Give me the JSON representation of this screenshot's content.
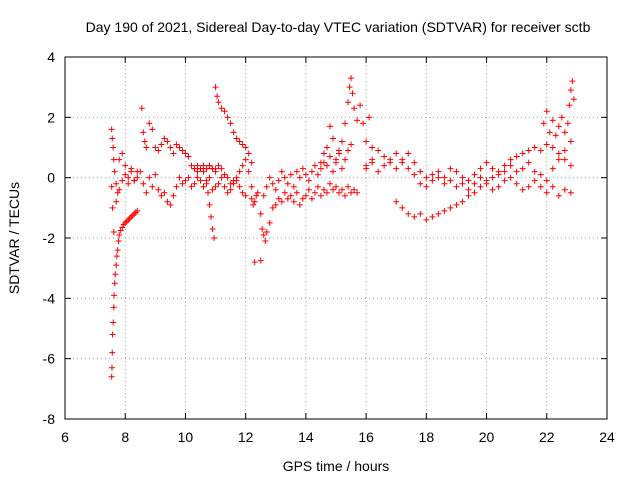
{
  "chart_data": {
    "type": "scatter",
    "title": "Day 190 of 2021, Sidereal Day-to-day VTEC variation (SDTVAR) for receiver sctb",
    "xlabel": "GPS time / hours",
    "ylabel": "SDTVAR / TECUs",
    "xlim": [
      6,
      24
    ],
    "ylim": [
      -8,
      4
    ],
    "xticks": [
      6,
      8,
      10,
      12,
      14,
      16,
      18,
      20,
      22,
      24
    ],
    "yticks": [
      -8,
      -6,
      -4,
      -2,
      0,
      2,
      4
    ],
    "grid": true,
    "marker": "+",
    "color": "#ff0000",
    "series": [
      {
        "name": "SDTVAR",
        "x": [
          7.55,
          7.56,
          7.57,
          7.58,
          7.6,
          7.62,
          7.63,
          7.65,
          7.67,
          7.7,
          7.72,
          7.75,
          7.78,
          7.8,
          7.85,
          7.9,
          7.95,
          8.0,
          8.05,
          8.1,
          8.15,
          8.2,
          8.25,
          8.3,
          8.35,
          8.4,
          7.55,
          7.57,
          7.6,
          7.62,
          7.65,
          7.7,
          7.75,
          7.8,
          7.9,
          8.0,
          8.1,
          8.2,
          8.3,
          8.4,
          7.55,
          7.58,
          7.62,
          7.7,
          7.8,
          7.9,
          8.0,
          8.1,
          8.2,
          8.3,
          8.4,
          8.55,
          8.6,
          8.65,
          8.7,
          8.8,
          8.9,
          9.0,
          9.1,
          9.2,
          9.3,
          9.4,
          9.5,
          9.6,
          9.7,
          9.8,
          9.9,
          10.0,
          10.1,
          10.2,
          10.3,
          10.4,
          10.5,
          10.6,
          10.7,
          10.8,
          10.9,
          11.0,
          8.5,
          8.6,
          8.7,
          8.8,
          8.9,
          9.0,
          9.1,
          9.2,
          9.3,
          9.4,
          9.5,
          9.6,
          9.7,
          9.8,
          9.9,
          10.0,
          10.1,
          10.2,
          10.3,
          10.4,
          10.5,
          10.6,
          10.7,
          10.8,
          10.9,
          11.0,
          11.1,
          11.2,
          11.3,
          11.4,
          11.5,
          11.6,
          11.7,
          11.8,
          11.9,
          12.0,
          10.3,
          10.4,
          10.5,
          10.6,
          10.7,
          10.8,
          10.9,
          11.0,
          11.1,
          11.2,
          11.3,
          11.4,
          11.5,
          11.6,
          11.7,
          11.8,
          11.9,
          12.0,
          12.1,
          12.2,
          10.7,
          10.75,
          10.8,
          10.85,
          10.9,
          10.95,
          11.0,
          11.05,
          11.1,
          11.2,
          11.3,
          11.4,
          11.5,
          11.6,
          11.7,
          11.8,
          11.9,
          12.0,
          12.1,
          12.2,
          12.2,
          12.25,
          12.3,
          12.35,
          12.4,
          12.5,
          12.55,
          12.6,
          12.65,
          12.7,
          12.8,
          12.9,
          13.0,
          13.1,
          13.2,
          13.3,
          13.4,
          13.5,
          13.6,
          13.7,
          13.8,
          13.9,
          14.0,
          14.1,
          14.2,
          14.3,
          14.4,
          14.5,
          14.6,
          14.7,
          14.8,
          14.9,
          15.0,
          15.1,
          15.2,
          15.3,
          15.4,
          15.5,
          15.6,
          15.7,
          12.6,
          12.7,
          12.8,
          12.9,
          13.0,
          13.1,
          13.2,
          13.3,
          13.4,
          13.5,
          13.6,
          13.7,
          13.8,
          13.9,
          14.0,
          14.1,
          14.2,
          14.3,
          14.4,
          14.5,
          12.3,
          12.5,
          14.6,
          14.7,
          14.8,
          14.9,
          15.0,
          15.1,
          15.2,
          15.3,
          15.4,
          15.45,
          15.5,
          15.55,
          15.6,
          15.7,
          15.8,
          15.9,
          16.0,
          16.1,
          16.2,
          14.5,
          14.6,
          14.7,
          14.8,
          14.9,
          15.0,
          15.1,
          15.2,
          15.3,
          15.4,
          15.5,
          16.0,
          16.2,
          16.4,
          16.6,
          16.8,
          17.0,
          17.2,
          17.4,
          17.6,
          17.8,
          18.0,
          18.2,
          18.4,
          18.6,
          18.8,
          19.0,
          19.2,
          19.4,
          19.6,
          19.8,
          20.0,
          20.2,
          20.4,
          20.6,
          20.8,
          21.0,
          21.2,
          21.4,
          21.6,
          21.8,
          22.0,
          22.2,
          22.4,
          22.6,
          22.8,
          16.0,
          16.2,
          16.4,
          16.6,
          16.8,
          17.0,
          17.2,
          17.4,
          17.6,
          17.8,
          18.0,
          18.2,
          18.4,
          18.6,
          18.8,
          19.0,
          19.2,
          19.4,
          19.6,
          19.8,
          20.0,
          20.2,
          20.4,
          20.6,
          20.8,
          21.0,
          21.2,
          21.4,
          21.6,
          21.8,
          22.0,
          22.2,
          22.4,
          22.6,
          22.8,
          17.0,
          17.2,
          17.4,
          17.6,
          17.8,
          18.0,
          18.2,
          18.4,
          18.6,
          18.8,
          19.0,
          19.2,
          19.4,
          19.6,
          19.8,
          20.0,
          20.2,
          20.4,
          20.6,
          20.8,
          21.0,
          21.2,
          21.4,
          21.6,
          21.8,
          22.0,
          22.2,
          22.4,
          22.6,
          22.8,
          21.9,
          22.0,
          22.1,
          22.2,
          22.3,
          22.4,
          22.5,
          22.6,
          22.7,
          22.75,
          22.8,
          22.85,
          22.9
        ],
        "y": [
          -6.6,
          -6.3,
          -5.8,
          -5.2,
          -4.8,
          -4.3,
          -3.9,
          -3.5,
          -3.2,
          -2.9,
          -2.6,
          -2.4,
          -2.1,
          -1.9,
          -1.75,
          -1.65,
          -1.55,
          -1.5,
          -1.45,
          -1.4,
          -1.35,
          -1.3,
          -1.25,
          -1.2,
          -1.15,
          -1.1,
          1.6,
          1.3,
          1.0,
          0.6,
          0.2,
          -0.2,
          -0.5,
          -0.4,
          -0.1,
          0.1,
          -0.2,
          0.2,
          -0.1,
          0.0,
          -0.3,
          -1.0,
          -1.8,
          -0.8,
          0.6,
          0.8,
          0.4,
          0.0,
          0.3,
          -0.1,
          0.2,
          2.3,
          1.5,
          1.2,
          1.0,
          1.8,
          1.6,
          1.0,
          0.9,
          1.1,
          1.3,
          1.2,
          1.0,
          0.8,
          1.1,
          1.0,
          0.9,
          0.8,
          0.7,
          0.4,
          0.3,
          0.2,
          0.3,
          0.4,
          0.3,
          0.4,
          0.3,
          0.3,
          0.2,
          -0.2,
          -0.5,
          0.0,
          -0.3,
          0.1,
          -0.4,
          -0.6,
          -0.5,
          -0.8,
          -0.9,
          -0.6,
          -0.3,
          0.0,
          -0.2,
          -0.1,
          0.0,
          -0.3,
          -0.2,
          0.0,
          -0.1,
          -0.3,
          -0.1,
          0.0,
          -0.4,
          -0.3,
          -0.2,
          0.0,
          -0.3,
          -0.5,
          -0.4,
          -0.2,
          -0.1,
          -0.3,
          -0.5,
          -0.6,
          0.3,
          0.4,
          0.3,
          0.2,
          0.3,
          0.4,
          0.3,
          0.2,
          0.4,
          0.3,
          0.1,
          0.0,
          -0.2,
          -0.1,
          0.0,
          0.2,
          0.4,
          0.6,
          0.2,
          -0.3,
          -0.2,
          -0.5,
          -0.9,
          -1.3,
          -1.7,
          -2.0,
          3.0,
          2.7,
          2.5,
          2.3,
          2.2,
          2.0,
          1.8,
          1.5,
          1.3,
          1.2,
          1.1,
          1.0,
          0.8,
          0.5,
          -0.7,
          -0.9,
          -0.8,
          -0.6,
          -0.5,
          -1.2,
          -1.7,
          -1.9,
          -2.1,
          -1.8,
          -1.5,
          -1.0,
          -0.9,
          -0.7,
          -0.8,
          -0.5,
          -0.7,
          -0.6,
          -0.8,
          -0.5,
          -0.9,
          -0.7,
          -0.6,
          -0.4,
          -0.7,
          -0.5,
          -0.3,
          -0.6,
          -0.4,
          -0.5,
          -0.2,
          -0.4,
          -0.3,
          -0.5,
          -0.4,
          -0.6,
          -0.3,
          -0.5,
          -0.4,
          -0.5,
          -0.6,
          -0.3,
          0.0,
          -0.2,
          -0.4,
          -0.1,
          0.2,
          0.0,
          -0.2,
          0.1,
          -0.3,
          0.2,
          0.0,
          0.3,
          0.1,
          -0.1,
          0.2,
          0.4,
          0.1,
          0.3,
          -2.8,
          -2.75,
          0.5,
          1.0,
          1.7,
          1.3,
          0.6,
          0.9,
          1.2,
          1.8,
          2.5,
          3.0,
          3.3,
          2.8,
          2.3,
          1.9,
          2.4,
          1.8,
          1.2,
          2.0,
          1.0,
          0.5,
          0.8,
          0.4,
          0.7,
          0.2,
          0.5,
          0.8,
          0.3,
          0.6,
          0.9,
          1.1,
          0.3,
          0.5,
          0.2,
          0.4,
          0.6,
          0.8,
          0.5,
          0.3,
          0.1,
          -0.2,
          -0.3,
          -0.1,
          0.0,
          -0.2,
          -0.1,
          -0.3,
          -0.2,
          -0.4,
          -0.2,
          0.0,
          -0.2,
          -0.4,
          -0.3,
          -0.1,
          0.0,
          -0.2,
          -0.4,
          -0.3,
          -0.1,
          -0.3,
          -0.5,
          -0.3,
          -0.6,
          -0.4,
          -0.5,
          0.4,
          0.6,
          0.9,
          0.7,
          0.5,
          0.3,
          0.6,
          0.8,
          0.5,
          0.2,
          0.0,
          0.1,
          0.2,
          0.0,
          0.3,
          0.2,
          0.0,
          -0.1,
          0.1,
          0.3,
          0.5,
          0.3,
          0.1,
          0.2,
          0.4,
          0.2,
          0.3,
          0.5,
          0.2,
          0.1,
          -0.1,
          0.3,
          0.6,
          0.9,
          1.2,
          -0.8,
          -1.0,
          -1.2,
          -1.3,
          -1.2,
          -1.4,
          -1.3,
          -1.2,
          -1.1,
          -1.0,
          -0.9,
          -0.8,
          -0.6,
          -0.5,
          -0.3,
          -0.1,
          0.0,
          0.2,
          0.4,
          0.6,
          0.7,
          0.8,
          0.9,
          1.0,
          0.9,
          1.1,
          1.0,
          0.8,
          0.6,
          0.4,
          1.8,
          2.2,
          1.5,
          1.9,
          1.4,
          1.7,
          2.0,
          1.5,
          1.8,
          2.4,
          2.9,
          3.2,
          2.6
        ]
      }
    ]
  }
}
